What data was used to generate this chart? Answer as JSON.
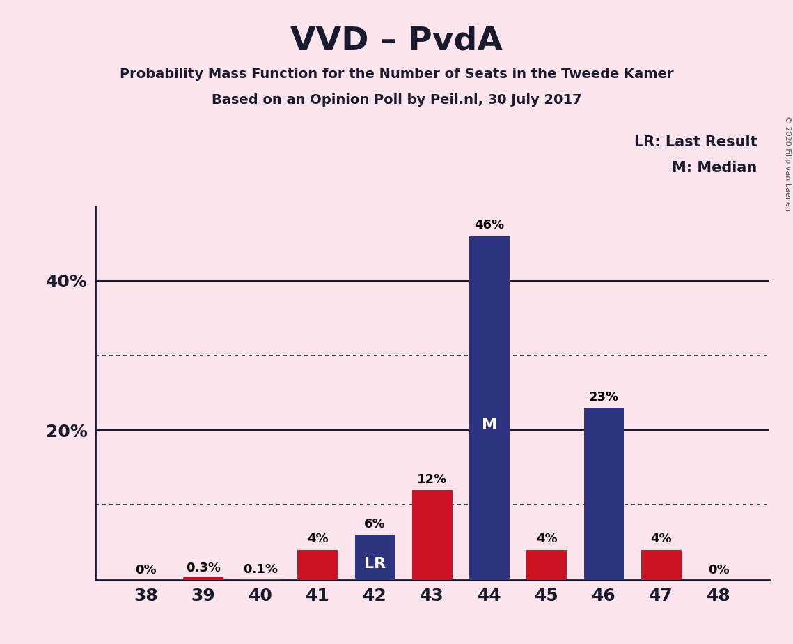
{
  "title": "VVD – PvdA",
  "subtitle1": "Probability Mass Function for the Number of Seats in the Tweede Kamer",
  "subtitle2": "Based on an Opinion Poll by Peil.nl, 30 July 2017",
  "copyright": "© 2020 Filip van Laenen",
  "legend_lr": "LR: Last Result",
  "legend_m": "M: Median",
  "background_color": "#fce4ec",
  "navy_color": "#2e3480",
  "red_color": "#cc1122",
  "categories": [
    38,
    39,
    40,
    41,
    42,
    43,
    44,
    45,
    46,
    47,
    48
  ],
  "values": [
    0.0,
    0.3,
    0.1,
    4.0,
    6.0,
    12.0,
    46.0,
    4.0,
    23.0,
    4.0,
    0.0
  ],
  "colors": [
    "navy",
    "red",
    "red",
    "red",
    "navy",
    "red",
    "navy",
    "red",
    "navy",
    "red",
    "navy"
  ],
  "labels": [
    "0%",
    "0.3%",
    "0.1%",
    "4%",
    "6%",
    "12%",
    "46%",
    "4%",
    "23%",
    "4%",
    "0%"
  ],
  "special_labels": {
    "42": "LR",
    "44": "M"
  },
  "ylim": [
    0,
    50
  ],
  "solid_yticks": [
    20,
    40
  ],
  "dotted_yticks": [
    10,
    30
  ],
  "bar_width": 0.7
}
